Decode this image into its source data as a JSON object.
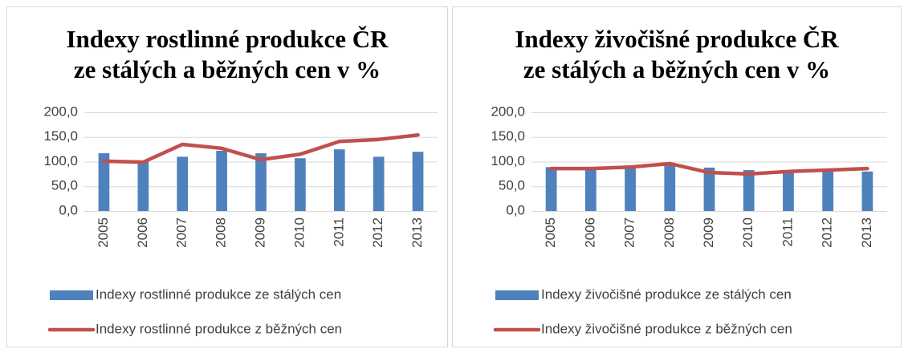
{
  "chart_data": [
    {
      "type": "combo",
      "title": [
        "Indexy rostlinné produkce ČR",
        "ze stálých a běžných cen v %"
      ],
      "categories": [
        "2005",
        "2006",
        "2007",
        "2008",
        "2009",
        "2010",
        "2011",
        "2012",
        "2013"
      ],
      "series": [
        {
          "name": "Indexy rostlinné produkce ze stálých cen",
          "type": "bar",
          "color": "#4f81bd",
          "values": [
            117,
            101,
            110,
            122,
            117,
            107,
            125,
            110,
            120
          ]
        },
        {
          "name": "Indexy rostlinné produkce z běžných cen",
          "type": "line",
          "color": "#c0504d",
          "values": [
            101,
            99,
            135,
            127,
            104,
            115,
            141,
            145,
            154
          ]
        }
      ],
      "ylim": [
        0,
        200
      ],
      "yticks": [
        {
          "value": 0,
          "label": "0,0"
        },
        {
          "value": 50,
          "label": "50,0"
        },
        {
          "value": 100,
          "label": "100,0"
        },
        {
          "value": 150,
          "label": "150,0"
        },
        {
          "value": 200,
          "label": "200,0"
        }
      ],
      "grid": true,
      "legend": "bottom"
    },
    {
      "type": "combo",
      "title": [
        "Indexy živočišné produkce ČR",
        "ze stálých a běžných cen v %"
      ],
      "categories": [
        "2005",
        "2006",
        "2007",
        "2008",
        "2009",
        "2010",
        "2011",
        "2012",
        "2013"
      ],
      "series": [
        {
          "name": "Indexy živočišné produkce ze stálých cen",
          "type": "bar",
          "color": "#4f81bd",
          "values": [
            89,
            89,
            91,
            97,
            88,
            83,
            80,
            83,
            80
          ]
        },
        {
          "name": "Indexy živočišné produkce z běžných cen",
          "type": "line",
          "color": "#c0504d",
          "values": [
            86,
            86,
            89,
            96,
            78,
            75,
            80,
            83,
            86
          ]
        }
      ],
      "ylim": [
        0,
        200
      ],
      "yticks": [
        {
          "value": 0,
          "label": "0,0"
        },
        {
          "value": 50,
          "label": "50,0"
        },
        {
          "value": 100,
          "label": "100,0"
        },
        {
          "value": 150,
          "label": "150,0"
        },
        {
          "value": 200,
          "label": "200,0"
        }
      ],
      "grid": true,
      "legend": "bottom"
    }
  ]
}
